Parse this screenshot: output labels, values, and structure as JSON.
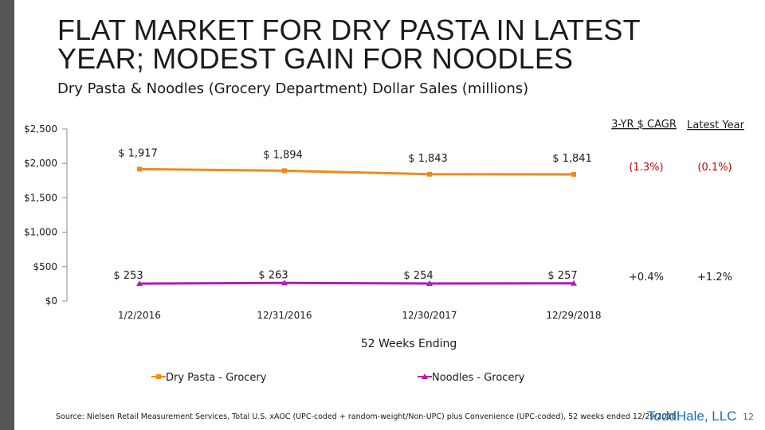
{
  "slide": {
    "title_line1": "FLAT MARKET FOR DRY PASTA IN LATEST",
    "title_line2": "YEAR; MODEST GAIN FOR NOODLES",
    "subtitle": "Dry Pasta & Noodles (Grocery Department) Dollar Sales (millions)",
    "source": "Source: Nielsen Retail Measurement Services, Total U.S. xAOC (UPC-coded + random-weight/Non-UPC) plus Convenience (UPC-coded), 52 weeks ended 12/29/2018",
    "logo": "ToddHale, LLC",
    "page_number": "12"
  },
  "chart_data": {
    "type": "line",
    "categories": [
      "1/2/2016",
      "12/31/2016",
      "12/30/2017",
      "12/29/2018"
    ],
    "xlabel": "52 Weeks Ending",
    "ylim": [
      0,
      2500
    ],
    "y_ticks": [
      0,
      500,
      1000,
      1500,
      2000,
      2500
    ],
    "y_tick_labels": [
      "$0",
      "$500",
      "$1,000",
      "$1,500",
      "$2,000",
      "$2,500"
    ],
    "grid": false,
    "legend_position": "bottom",
    "series": [
      {
        "name": "Dry Pasta - Grocery",
        "values": [
          1917,
          1894,
          1843,
          1841
        ],
        "labels": [
          "$ 1,917",
          "$ 1,894",
          "$ 1,843",
          "$ 1,841"
        ],
        "color": "#ED8B1D",
        "marker": "square",
        "cagr_3yr": "(1.3%)",
        "latest_year": "(0.1%)",
        "stat_color": "#C00000"
      },
      {
        "name": "Noodles - Grocery",
        "values": [
          253,
          263,
          254,
          257
        ],
        "labels": [
          "$ 253",
          "$ 263",
          "$ 254",
          "$ 257"
        ],
        "color": "#B01EB0",
        "marker": "triangle",
        "cagr_3yr": "+0.4%",
        "latest_year": "+1.2%",
        "stat_color": "#1a1a1a"
      }
    ],
    "stat_headers": [
      "3-YR $ CAGR",
      "Latest Year"
    ]
  }
}
